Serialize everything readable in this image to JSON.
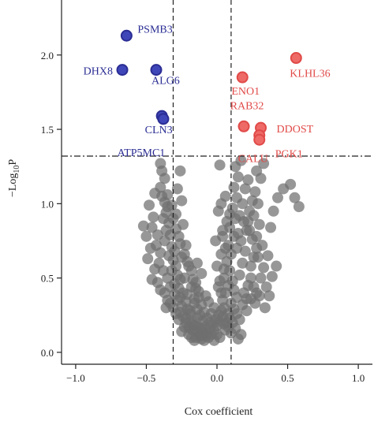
{
  "chart_data": {
    "type": "scatter",
    "title": "",
    "xlabel": "Cox coefficient",
    "ylabel_parts": {
      "prefix": "−Log",
      "sub": "10",
      "suffix": "P"
    },
    "xlim": [
      -1.1,
      1.1
    ],
    "ylim": [
      -0.08,
      2.37
    ],
    "xticks": [
      -1.0,
      -0.5,
      0.0,
      0.5,
      1.0
    ],
    "xtick_labels": [
      "−1.0",
      "−0.5",
      "0.0",
      "0.5",
      "1.0"
    ],
    "yticks": [
      0.0,
      0.5,
      1.0,
      1.5,
      2.0
    ],
    "ytick_labels": [
      "0.0",
      "0.5",
      "1.0",
      "1.5",
      "2.0"
    ],
    "vlines": [
      -0.31,
      0.1
    ],
    "hline": 1.32,
    "colors": {
      "neg": "#2a2d93",
      "neg_fill": "#3f46b8",
      "pos": "#e04a48",
      "pos_fill": "#ee6a66",
      "ns": "#6f6f6f"
    },
    "significant_negative": [
      {
        "label": "PSMB3",
        "x": -0.64,
        "y": 2.13
      },
      {
        "label": "DHX8",
        "x": -0.67,
        "y": 1.9
      },
      {
        "label": "ALG6",
        "x": -0.43,
        "y": 1.9
      },
      {
        "label": "CLN3",
        "x": -0.39,
        "y": 1.59
      },
      {
        "label": "ATP5MC1",
        "x": -0.38,
        "y": 1.57
      }
    ],
    "significant_positive": [
      {
        "label": "KLHL36",
        "x": 0.56,
        "y": 1.98
      },
      {
        "label": "ENO1",
        "x": 0.18,
        "y": 1.85
      },
      {
        "label": "RAB32",
        "x": 0.19,
        "y": 1.52
      },
      {
        "label": "DDOST",
        "x": 0.31,
        "y": 1.51
      },
      {
        "label": "CALU",
        "x": 0.3,
        "y": 1.46
      },
      {
        "label": "PGK1",
        "x": 0.3,
        "y": 1.43
      }
    ],
    "nonsignificant": [
      [
        -0.4,
        1.27
      ],
      [
        -0.39,
        1.22
      ],
      [
        -0.37,
        1.17
      ],
      [
        -0.4,
        1.11
      ],
      [
        -0.44,
        1.07
      ],
      [
        -0.39,
        1.05
      ],
      [
        -0.37,
        1.01
      ],
      [
        -0.35,
        0.98
      ],
      [
        -0.36,
        0.94
      ],
      [
        -0.38,
        0.9
      ],
      [
        -0.34,
        0.87
      ],
      [
        -0.36,
        0.82
      ],
      [
        -0.33,
        0.79
      ],
      [
        -0.37,
        0.75
      ],
      [
        -0.32,
        0.71
      ],
      [
        -0.3,
        0.68
      ],
      [
        -0.34,
        0.65
      ],
      [
        -0.31,
        0.62
      ],
      [
        -0.29,
        0.58
      ],
      [
        -0.32,
        0.55
      ],
      [
        -0.28,
        0.52
      ],
      [
        -0.26,
        0.49
      ],
      [
        -0.3,
        0.46
      ],
      [
        -0.27,
        0.43
      ],
      [
        -0.24,
        0.4
      ],
      [
        -0.26,
        0.37
      ],
      [
        -0.22,
        0.34
      ],
      [
        -0.25,
        0.31
      ],
      [
        -0.21,
        0.29
      ],
      [
        -0.19,
        0.26
      ],
      [
        -0.22,
        0.23
      ],
      [
        -0.18,
        0.21
      ],
      [
        -0.16,
        0.18
      ],
      [
        -0.19,
        0.16
      ],
      [
        -0.14,
        0.14
      ],
      [
        -0.12,
        0.12
      ],
      [
        -0.15,
        0.1
      ],
      [
        -0.11,
        0.09
      ],
      [
        -0.09,
        0.08
      ],
      [
        -0.12,
        0.11
      ],
      [
        -0.26,
        1.22
      ],
      [
        -0.28,
        1.1
      ],
      [
        -0.25,
        1.02
      ],
      [
        -0.29,
        0.93
      ],
      [
        -0.24,
        0.86
      ],
      [
        -0.27,
        0.78
      ],
      [
        -0.22,
        0.72
      ],
      [
        -0.25,
        0.64
      ],
      [
        -0.2,
        0.58
      ],
      [
        -0.23,
        0.5
      ],
      [
        -0.18,
        0.44
      ],
      [
        -0.21,
        0.39
      ],
      [
        -0.16,
        0.33
      ],
      [
        -0.19,
        0.28
      ],
      [
        -0.14,
        0.23
      ],
      [
        -0.17,
        0.19
      ],
      [
        -0.48,
        0.99
      ],
      [
        -0.45,
        0.91
      ],
      [
        -0.46,
        0.84
      ],
      [
        -0.42,
        0.79
      ],
      [
        -0.43,
        0.72
      ],
      [
        -0.4,
        0.67
      ],
      [
        -0.41,
        0.6
      ],
      [
        -0.38,
        0.55
      ],
      [
        -0.35,
        0.5
      ],
      [
        -0.33,
        0.44
      ],
      [
        -0.3,
        0.39
      ],
      [
        -0.28,
        0.35
      ],
      [
        -0.31,
        0.3
      ],
      [
        -0.26,
        0.27
      ],
      [
        -0.24,
        0.24
      ],
      [
        -0.22,
        0.2
      ],
      [
        -0.2,
        0.17
      ],
      [
        -0.17,
        0.15
      ],
      [
        -0.13,
        0.17
      ],
      [
        -0.1,
        0.14
      ],
      [
        -0.08,
        0.11
      ],
      [
        -0.06,
        0.1
      ],
      [
        -0.07,
        0.13
      ],
      [
        -0.04,
        0.12
      ],
      [
        -0.05,
        0.16
      ],
      [
        -0.02,
        0.15
      ],
      [
        -0.03,
        0.19
      ],
      [
        0.0,
        0.18
      ],
      [
        -0.01,
        0.22
      ],
      [
        0.02,
        0.21
      ],
      [
        0.01,
        0.25
      ],
      [
        0.03,
        0.28
      ],
      [
        -0.1,
        0.21
      ],
      [
        -0.12,
        0.25
      ],
      [
        -0.14,
        0.29
      ],
      [
        -0.16,
        0.36
      ],
      [
        -0.13,
        0.41
      ],
      [
        -0.15,
        0.47
      ],
      [
        -0.11,
        0.53
      ],
      [
        -0.14,
        0.6
      ],
      [
        0.05,
        0.3
      ],
      [
        0.04,
        0.35
      ],
      [
        0.06,
        0.4
      ],
      [
        0.08,
        0.45
      ],
      [
        0.05,
        0.5
      ],
      [
        0.09,
        0.55
      ],
      [
        0.07,
        0.61
      ],
      [
        0.1,
        0.66
      ],
      [
        0.08,
        0.72
      ],
      [
        0.12,
        0.78
      ],
      [
        0.09,
        0.84
      ],
      [
        0.13,
        0.9
      ],
      [
        0.11,
        0.97
      ],
      [
        0.14,
        1.04
      ],
      [
        0.12,
        1.11
      ],
      [
        0.15,
        1.18
      ],
      [
        0.13,
        1.25
      ],
      [
        0.17,
        1.29
      ],
      [
        0.02,
        0.48
      ],
      [
        0.0,
        0.58
      ],
      [
        0.03,
        0.66
      ],
      [
        -0.01,
        0.75
      ],
      [
        0.04,
        0.82
      ],
      [
        0.01,
        0.95
      ],
      [
        0.06,
        1.05
      ],
      [
        0.02,
        1.26
      ],
      [
        0.16,
        0.52
      ],
      [
        0.18,
        0.6
      ],
      [
        0.2,
        0.68
      ],
      [
        0.17,
        0.75
      ],
      [
        0.21,
        0.82
      ],
      [
        0.19,
        0.88
      ],
      [
        0.23,
        0.95
      ],
      [
        0.25,
        1.02
      ],
      [
        0.22,
        0.45
      ],
      [
        0.19,
        0.4
      ],
      [
        0.24,
        0.36
      ],
      [
        0.18,
        0.32
      ],
      [
        0.21,
        0.28
      ],
      [
        0.14,
        0.26
      ],
      [
        0.16,
        0.22
      ],
      [
        0.11,
        0.2
      ],
      [
        0.13,
        0.16
      ],
      [
        0.08,
        0.17
      ],
      [
        0.1,
        0.13
      ],
      [
        0.06,
        0.15
      ],
      [
        0.07,
        0.2
      ],
      [
        0.04,
        0.24
      ],
      [
        0.27,
        1.08
      ],
      [
        0.29,
        1.0
      ],
      [
        0.26,
        0.92
      ],
      [
        0.3,
        0.86
      ],
      [
        0.28,
        0.78
      ],
      [
        0.32,
        0.72
      ],
      [
        0.29,
        0.64
      ],
      [
        0.33,
        0.57
      ],
      [
        0.31,
        0.5
      ],
      [
        0.35,
        0.44
      ],
      [
        0.3,
        0.38
      ],
      [
        0.27,
        0.33
      ],
      [
        0.36,
        0.65
      ],
      [
        0.38,
        0.84
      ],
      [
        0.4,
        0.95
      ],
      [
        0.43,
        1.04
      ],
      [
        0.47,
        1.1
      ],
      [
        0.52,
        1.13
      ],
      [
        0.55,
        1.04
      ],
      [
        0.58,
        0.98
      ],
      [
        0.42,
        0.58
      ],
      [
        0.39,
        0.51
      ],
      [
        0.37,
        0.38
      ],
      [
        0.34,
        0.3
      ],
      [
        0.31,
        1.17
      ],
      [
        0.28,
        1.22
      ],
      [
        0.33,
        1.27
      ],
      [
        0.17,
        0.12
      ],
      [
        0.15,
        0.09
      ],
      [
        -0.02,
        0.08
      ],
      [
        0.0,
        0.12
      ],
      [
        0.02,
        0.1
      ],
      [
        -0.52,
        0.85
      ],
      [
        -0.5,
        0.78
      ],
      [
        -0.47,
        0.7
      ],
      [
        -0.49,
        0.63
      ],
      [
        -0.44,
        0.56
      ],
      [
        -0.46,
        0.49
      ],
      [
        -0.42,
        0.47
      ],
      [
        -0.4,
        0.42
      ],
      [
        -0.37,
        0.4
      ],
      [
        -0.35,
        0.35
      ],
      [
        -0.33,
        0.33
      ],
      [
        -0.36,
        0.3
      ],
      [
        -0.29,
        0.26
      ],
      [
        -0.27,
        0.22
      ],
      [
        -0.23,
        0.17
      ],
      [
        -0.25,
        0.14
      ],
      [
        -0.2,
        0.12
      ],
      [
        -0.18,
        0.1
      ],
      [
        -0.16,
        0.08
      ],
      [
        -0.35,
        1.06
      ],
      [
        -0.32,
        0.99
      ],
      [
        -0.31,
        0.9
      ],
      [
        -0.29,
        0.83
      ],
      [
        -0.26,
        0.73
      ],
      [
        -0.23,
        0.66
      ],
      [
        -0.21,
        0.61
      ],
      [
        -0.18,
        0.55
      ],
      [
        -0.17,
        0.49
      ],
      [
        -0.15,
        0.43
      ],
      [
        -0.13,
        0.37
      ],
      [
        -0.11,
        0.32
      ],
      [
        -0.09,
        0.27
      ],
      [
        -0.07,
        0.23
      ],
      [
        -0.05,
        0.2
      ],
      [
        -0.04,
        0.26
      ],
      [
        -0.02,
        0.3
      ],
      [
        -0.06,
        0.34
      ],
      [
        -0.08,
        0.38
      ],
      [
        -0.09,
        0.17
      ],
      [
        -0.11,
        0.16
      ],
      [
        0.03,
        0.4
      ],
      [
        0.01,
        0.44
      ],
      [
        0.05,
        0.56
      ],
      [
        0.06,
        0.7
      ],
      [
        0.04,
        0.78
      ],
      [
        0.07,
        0.88
      ],
      [
        0.09,
        0.93
      ],
      [
        0.03,
        1.0
      ],
      [
        0.11,
        0.48
      ],
      [
        0.12,
        0.42
      ],
      [
        0.14,
        0.37
      ],
      [
        0.1,
        0.33
      ],
      [
        0.12,
        0.29
      ],
      [
        0.08,
        0.26
      ],
      [
        0.09,
        0.23
      ],
      [
        0.05,
        0.19
      ],
      [
        0.14,
        0.7
      ],
      [
        0.15,
        0.8
      ],
      [
        0.16,
        0.92
      ],
      [
        0.18,
        1.0
      ],
      [
        0.2,
        1.1
      ],
      [
        0.22,
        1.16
      ],
      [
        0.24,
        0.58
      ],
      [
        0.26,
        0.64
      ],
      [
        0.28,
        0.7
      ],
      [
        0.25,
        0.76
      ],
      [
        0.23,
        0.82
      ],
      [
        0.22,
        0.88
      ],
      [
        0.24,
        0.5
      ],
      [
        0.26,
        0.44
      ],
      [
        0.28,
        0.4
      ],
      [
        0.21,
        0.36
      ]
    ]
  }
}
